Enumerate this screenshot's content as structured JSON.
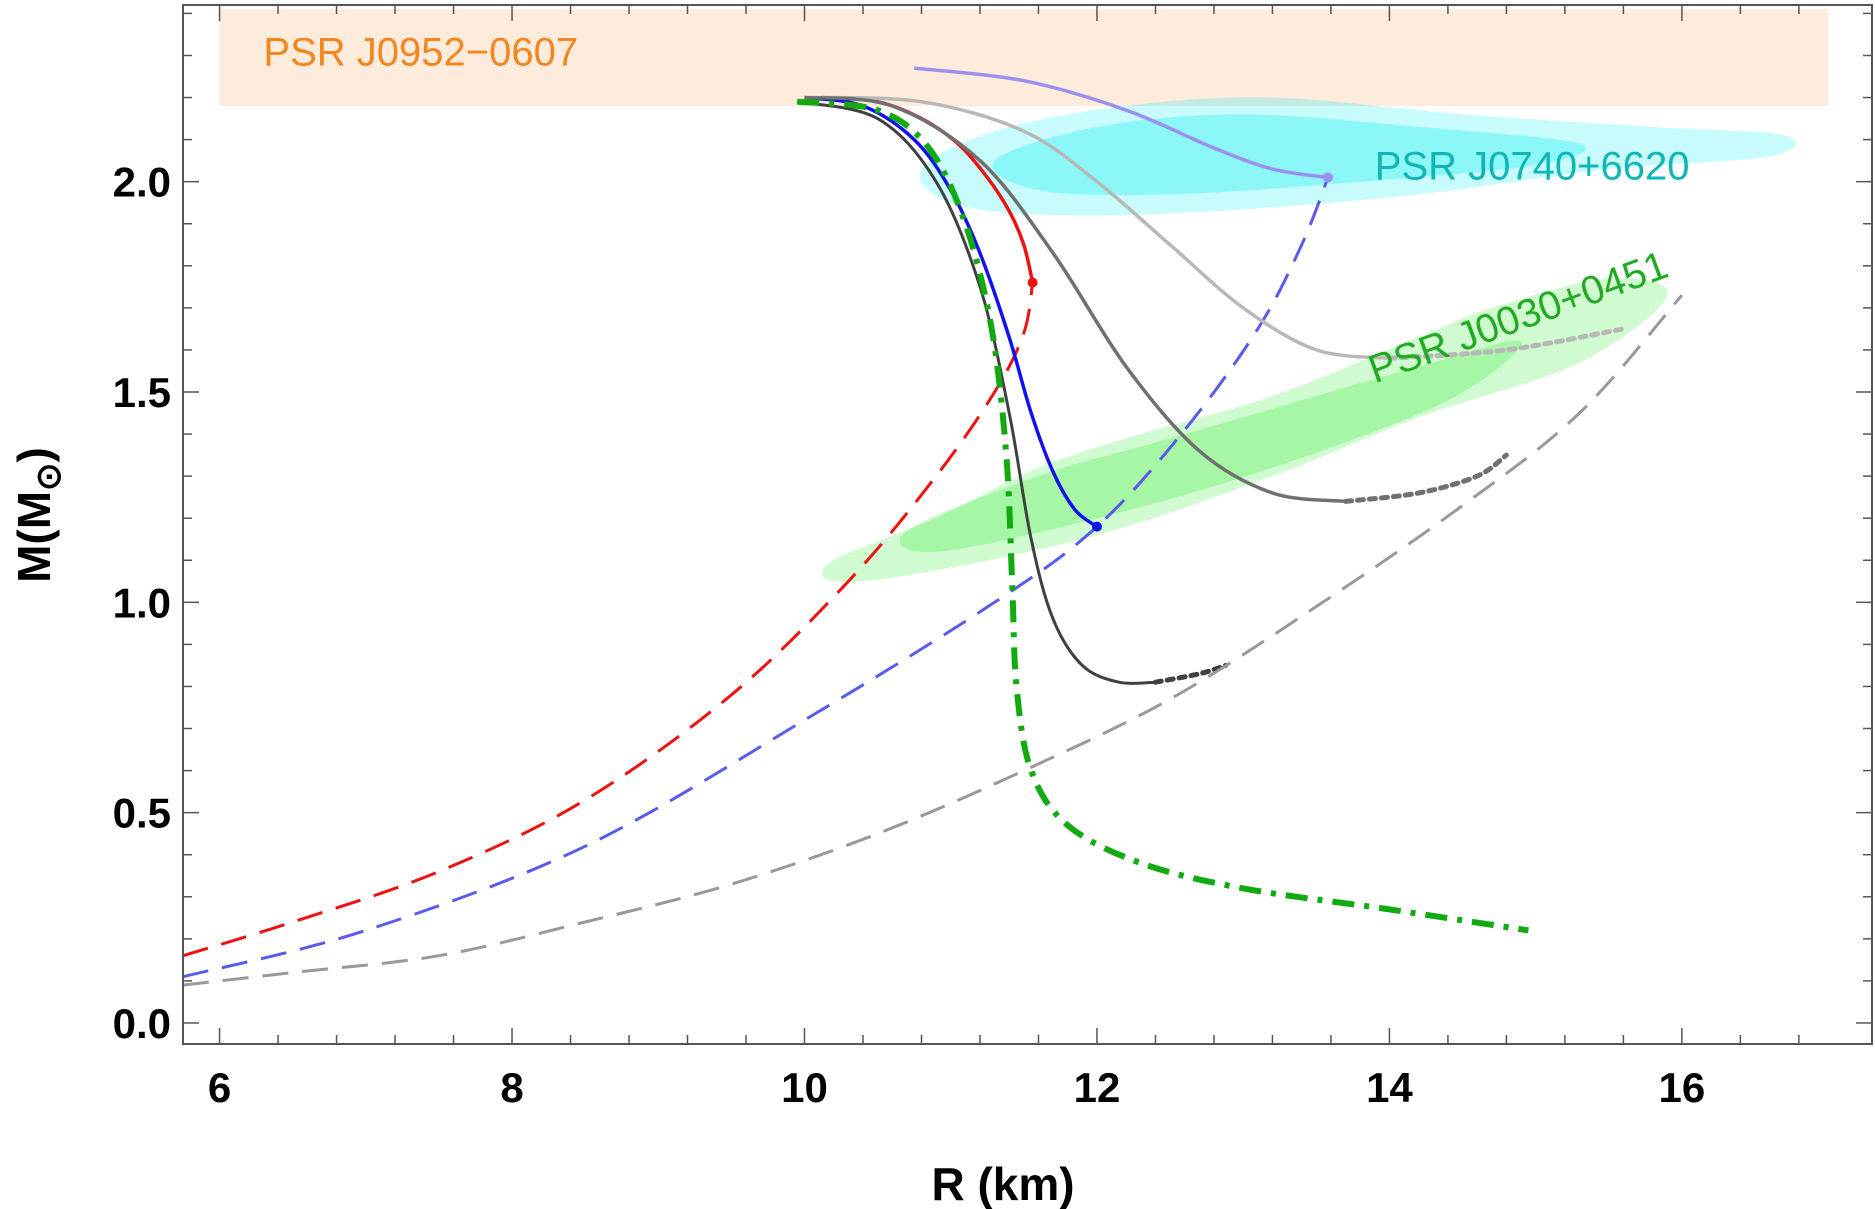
{
  "chart_data": {
    "type": "line",
    "title": "",
    "xlabel": "R (km)",
    "ylabel_main": "M(M",
    "ylabel_sub": "⊙",
    "ylabel_close": ")",
    "xlim": [
      5.75,
      17.3
    ],
    "ylim": [
      -0.05,
      2.42
    ],
    "x_ticks": [
      6,
      8,
      10,
      12,
      14,
      16
    ],
    "x_tick_labels": [
      "6",
      "8",
      "10",
      "12",
      "14",
      "16"
    ],
    "y_ticks": [
      0.0,
      0.5,
      1.0,
      1.5,
      2.0
    ],
    "y_tick_labels": [
      "0.0",
      "0.5",
      "1.0",
      "1.5",
      "2.0"
    ],
    "colors": {
      "red": "#ee1111",
      "blue": "#1111ee",
      "blue_dashed": "#5a5aee",
      "green": "#11aa11",
      "dark_gray": "#404040",
      "mid_gray": "#707070",
      "light_gray": "#b8b8b8",
      "purple": "#9b8ff0",
      "gray_dashed": "#999999",
      "band_orange": "#fde8d6",
      "label_orange": "#f5861f",
      "cyan_fill": "#00eef0",
      "cyan_label": "#10b5b5",
      "green_fill": "#55ee55",
      "green_label": "#22aa22"
    },
    "regions": [
      {
        "name": "PSR J0952-0607",
        "label": "PSR J0952−0607",
        "type": "band",
        "ymin": 2.18,
        "ymax": 2.41,
        "x_range": [
          6.0,
          17.0
        ]
      },
      {
        "name": "PSR J0740+6620",
        "label": "PSR J0740+6620",
        "outer": [
          [
            10.8,
            2.03
          ],
          [
            11.3,
            2.12
          ],
          [
            12.2,
            2.18
          ],
          [
            13.2,
            2.2
          ],
          [
            14.5,
            2.16
          ],
          [
            15.8,
            2.13
          ],
          [
            16.7,
            2.11
          ],
          [
            16.6,
            2.06
          ],
          [
            15.5,
            2.03
          ],
          [
            14.2,
            1.97
          ],
          [
            12.8,
            1.93
          ],
          [
            11.7,
            1.92
          ],
          [
            11.0,
            1.95
          ]
        ],
        "inner": [
          [
            11.3,
            2.05
          ],
          [
            12.0,
            2.13
          ],
          [
            13.0,
            2.16
          ],
          [
            14.2,
            2.13
          ],
          [
            15.3,
            2.09
          ],
          [
            15.0,
            2.04
          ],
          [
            13.8,
            2.0
          ],
          [
            12.5,
            1.97
          ],
          [
            11.6,
            1.98
          ]
        ]
      },
      {
        "name": "PSR J0030+0451",
        "label": "PSR J0030+0451",
        "outer": [
          [
            10.2,
            1.1
          ],
          [
            10.9,
            1.2
          ],
          [
            11.6,
            1.32
          ],
          [
            12.3,
            1.4
          ],
          [
            13.2,
            1.49
          ],
          [
            14.2,
            1.63
          ],
          [
            14.7,
            1.7
          ],
          [
            15.5,
            1.77
          ],
          [
            15.9,
            1.73
          ],
          [
            15.3,
            1.57
          ],
          [
            14.2,
            1.44
          ],
          [
            13.2,
            1.3
          ],
          [
            12.0,
            1.16
          ],
          [
            10.8,
            1.07
          ],
          [
            10.2,
            1.05
          ]
        ],
        "inner": [
          [
            10.7,
            1.17
          ],
          [
            11.6,
            1.3
          ],
          [
            12.4,
            1.38
          ],
          [
            13.2,
            1.46
          ],
          [
            14.2,
            1.56
          ],
          [
            14.9,
            1.62
          ],
          [
            14.4,
            1.48
          ],
          [
            13.2,
            1.32
          ],
          [
            12.0,
            1.2
          ],
          [
            10.9,
            1.12
          ]
        ]
      }
    ],
    "series": [
      {
        "name": "red-solid",
        "color_key": "red",
        "style": "solid",
        "width": 3.5,
        "x": [
          10.12,
          10.5,
          10.8,
          11.05,
          11.25,
          11.4,
          11.5,
          11.56
        ],
        "y": [
          2.2,
          2.19,
          2.15,
          2.09,
          2.01,
          1.93,
          1.85,
          1.76
        ]
      },
      {
        "name": "red-dashed",
        "color_key": "red",
        "style": "dashed",
        "width": 3,
        "x": [
          5.75,
          6.5,
          7.5,
          8.5,
          9.5,
          10.3,
          10.9,
          11.3,
          11.5,
          11.56
        ],
        "y": [
          0.16,
          0.24,
          0.36,
          0.53,
          0.78,
          1.05,
          1.3,
          1.5,
          1.64,
          1.76
        ]
      },
      {
        "name": "blue-solid",
        "color_key": "blue",
        "style": "solid",
        "width": 3.5,
        "x": [
          10.0,
          10.4,
          10.75,
          11.0,
          11.2,
          11.4,
          11.55,
          11.7,
          11.85,
          12.0
        ],
        "y": [
          2.2,
          2.18,
          2.1,
          1.98,
          1.83,
          1.63,
          1.45,
          1.31,
          1.22,
          1.18
        ]
      },
      {
        "name": "blue-dashed",
        "color_key": "blue_dashed",
        "style": "dashed",
        "width": 3,
        "x": [
          5.75,
          7.0,
          8.5,
          10.0,
          11.3,
          12.0,
          12.6,
          13.1,
          13.4,
          13.58
        ],
        "y": [
          0.11,
          0.22,
          0.42,
          0.72,
          1.0,
          1.18,
          1.41,
          1.65,
          1.85,
          2.01
        ]
      },
      {
        "name": "purple-solid",
        "color_key": "purple",
        "style": "solid",
        "width": 3.5,
        "x": [
          10.75,
          11.5,
          12.2,
          12.8,
          13.2,
          13.58
        ],
        "y": [
          2.27,
          2.24,
          2.17,
          2.08,
          2.03,
          2.01
        ]
      },
      {
        "name": "light-gray-solid",
        "color_key": "light_gray",
        "style": "solid",
        "width": 3.5,
        "x": [
          10.0,
          10.8,
          11.5,
          12.0,
          12.5,
          13.0,
          13.5,
          14.0
        ],
        "y": [
          2.2,
          2.19,
          2.12,
          2.0,
          1.85,
          1.7,
          1.6,
          1.58
        ]
      },
      {
        "name": "light-gray-dotted",
        "color_key": "light_gray",
        "style": "dotted",
        "width": 5,
        "x": [
          14.0,
          14.8,
          15.6
        ],
        "y": [
          1.58,
          1.6,
          1.65
        ]
      },
      {
        "name": "mid-gray-solid",
        "color_key": "mid_gray",
        "style": "solid",
        "width": 3.5,
        "x": [
          10.0,
          10.6,
          11.2,
          11.7,
          12.2,
          12.7,
          13.2,
          13.7
        ],
        "y": [
          2.2,
          2.18,
          2.05,
          1.83,
          1.56,
          1.36,
          1.26,
          1.24
        ]
      },
      {
        "name": "mid-gray-dotted",
        "color_key": "mid_gray",
        "style": "dotted",
        "width": 5,
        "x": [
          13.7,
          14.2,
          14.6,
          14.8
        ],
        "y": [
          1.24,
          1.26,
          1.3,
          1.35
        ]
      },
      {
        "name": "dark-gray-solid",
        "color_key": "dark_gray",
        "style": "solid",
        "width": 3,
        "x": [
          9.95,
          10.5,
          10.9,
          11.2,
          11.4,
          11.55,
          11.7,
          11.9,
          12.15,
          12.4
        ],
        "y": [
          2.19,
          2.15,
          2.0,
          1.75,
          1.45,
          1.15,
          0.96,
          0.85,
          0.81,
          0.81
        ]
      },
      {
        "name": "dark-gray-dotted",
        "color_key": "dark_gray",
        "style": "dotted",
        "width": 5,
        "x": [
          12.4,
          12.7,
          12.88
        ],
        "y": [
          0.81,
          0.83,
          0.85
        ]
      },
      {
        "name": "gray-dashed",
        "color_key": "gray_dashed",
        "style": "dashed",
        "width": 3,
        "x": [
          5.75,
          6.5,
          7.5,
          8.5,
          9.5,
          10.5,
          11.5,
          12.5,
          13.5,
          14.5,
          15.3,
          16.0
        ],
        "y": [
          0.09,
          0.12,
          0.16,
          0.24,
          0.33,
          0.45,
          0.6,
          0.77,
          0.99,
          1.23,
          1.45,
          1.73
        ]
      },
      {
        "name": "green-dashdot",
        "color_key": "green",
        "style": "dashdot",
        "width": 6,
        "x": [
          9.95,
          10.5,
          10.85,
          11.1,
          11.28,
          11.38,
          11.42,
          11.45,
          11.55,
          11.8,
          12.3,
          13.0,
          14.0,
          14.95
        ],
        "y": [
          2.19,
          2.17,
          2.08,
          1.9,
          1.65,
          1.35,
          1.05,
          0.8,
          0.6,
          0.47,
          0.38,
          0.32,
          0.27,
          0.22
        ]
      }
    ],
    "markers": [
      {
        "name": "red-max-point",
        "color_key": "red",
        "x": 11.56,
        "y": 1.76
      },
      {
        "name": "blue-max-point",
        "color_key": "blue",
        "x": 12.0,
        "y": 1.18
      },
      {
        "name": "purple-max-point",
        "color_key": "purple",
        "x": 13.58,
        "y": 2.01
      }
    ]
  }
}
